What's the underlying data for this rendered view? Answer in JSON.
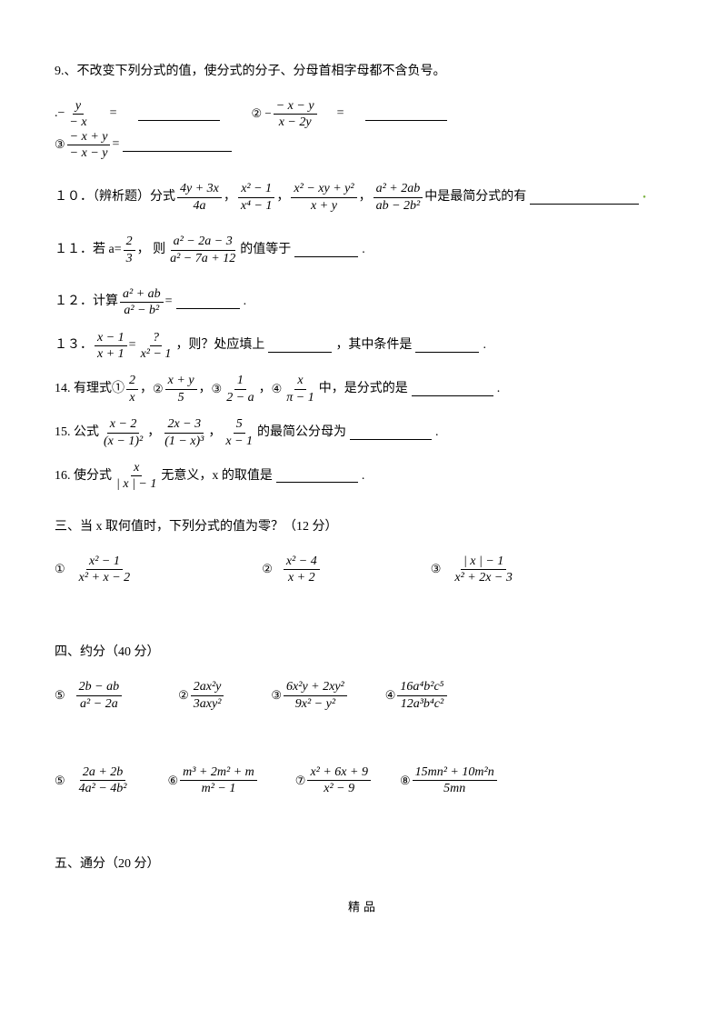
{
  "q9": {
    "prompt": "9.、不改变下列分式的值，使分式的分子、分母首相字母都不含负号。",
    "i1_label": ".−",
    "i1_num": "y",
    "i1_den": "− x",
    "eq": "=",
    "i2_label": "② −",
    "i2_num": "− x − y",
    "i2_den": "x − 2y",
    "i3_label": "③",
    "i3_num": "− x + y",
    "i3_den": "− x − y"
  },
  "q10": {
    "pre": "１０．（辨析题）分式",
    "f1n": "4y + 3x",
    "f1d": "4a",
    "f2n": "x² − 1",
    "f2d": "x⁴ − 1",
    "f3n": "x² − xy + y²",
    "f3d": "x + y",
    "f4n": "a² + 2ab",
    "f4d": "ab − 2b²",
    "post": "中是最简分式的有",
    "comma": "，"
  },
  "q11": {
    "pre": "１１．若 a=",
    "f1n": "2",
    "f1d": "3",
    "mid": "， 则",
    "f2n": "a² − 2a − 3",
    "f2d": "a² − 7a + 12",
    "post": "的值等于",
    "end": "."
  },
  "q12": {
    "pre": "１２．计算",
    "fn": "a² + ab",
    "fd": "a² − b²",
    "eq": "=",
    "end": "."
  },
  "q13": {
    "pre": "１３．",
    "f1n": "x − 1",
    "f1d": "x + 1",
    "eq": "=",
    "f2n": "?",
    "f2d": "x² − 1",
    "mid": "，则？处应填上",
    "mid2": "，其中条件是",
    "end": "."
  },
  "q14": {
    "pre": "14. 有理式①",
    "f1n": "2",
    "f1d": "x",
    "c": "，",
    "l2": "②",
    "f2n": "x + y",
    "f2d": "5",
    "l3": "③",
    "f3n": "1",
    "f3d": "2 − a",
    "l4": "④",
    "f4n": "x",
    "f4d": "π − 1",
    "mid": "中，是分式的是",
    "end": "."
  },
  "q15": {
    "pre": "15. 公式",
    "f1n": "x − 2",
    "f1d": "(x − 1)²",
    "c": "，",
    "f2n": "2x − 3",
    "f2d": "(1 − x)³",
    "f3n": "5",
    "f3d": "x − 1",
    "post": "的最简公分母为",
    "end": "."
  },
  "q16": {
    "pre": "16. 使分式",
    "fn": "x",
    "fd": "| x | − 1",
    "post": "无意义，x 的取值是",
    "end": "."
  },
  "s3": {
    "title": "三、当 x 取何值时，下列分式的值为零？（12 分）",
    "i1": "①",
    "f1n": "x² − 1",
    "f1d": "x² + x − 2",
    "i2": "②",
    "f2n": "x² − 4",
    "f2d": "x + 2",
    "i3": "③",
    "f3n": "| x | − 1",
    "f3d": "x² + 2x − 3"
  },
  "s4": {
    "title": "四、约分（40 分）",
    "i5": "⑤",
    "f5n": "2b − ab",
    "f5d": "a² − 2a",
    "i2": "②",
    "f2n": "2ax²y",
    "f2d": "3axy²",
    "i3": "③",
    "f3n": "6x²y + 2xy²",
    "f3d": "9x² − y²",
    "i4": "④",
    "f4n": "16a⁴b²c⁵",
    "f4d": "12a³b⁴c²",
    "i5b": "⑤",
    "f5bn": "2a + 2b",
    "f5bd": "4a² − 4b²",
    "i6": "⑥",
    "f6n": "m³ + 2m² + m",
    "f6d": "m² − 1",
    "i7": "⑦",
    "f7n": "x² + 6x + 9",
    "f7d": "x² − 9",
    "i8": "⑧",
    "f8n": "15mn² + 10m²n",
    "f8d": "5mn"
  },
  "s5": {
    "title": "五、通分（20 分）"
  },
  "footer": "精品"
}
